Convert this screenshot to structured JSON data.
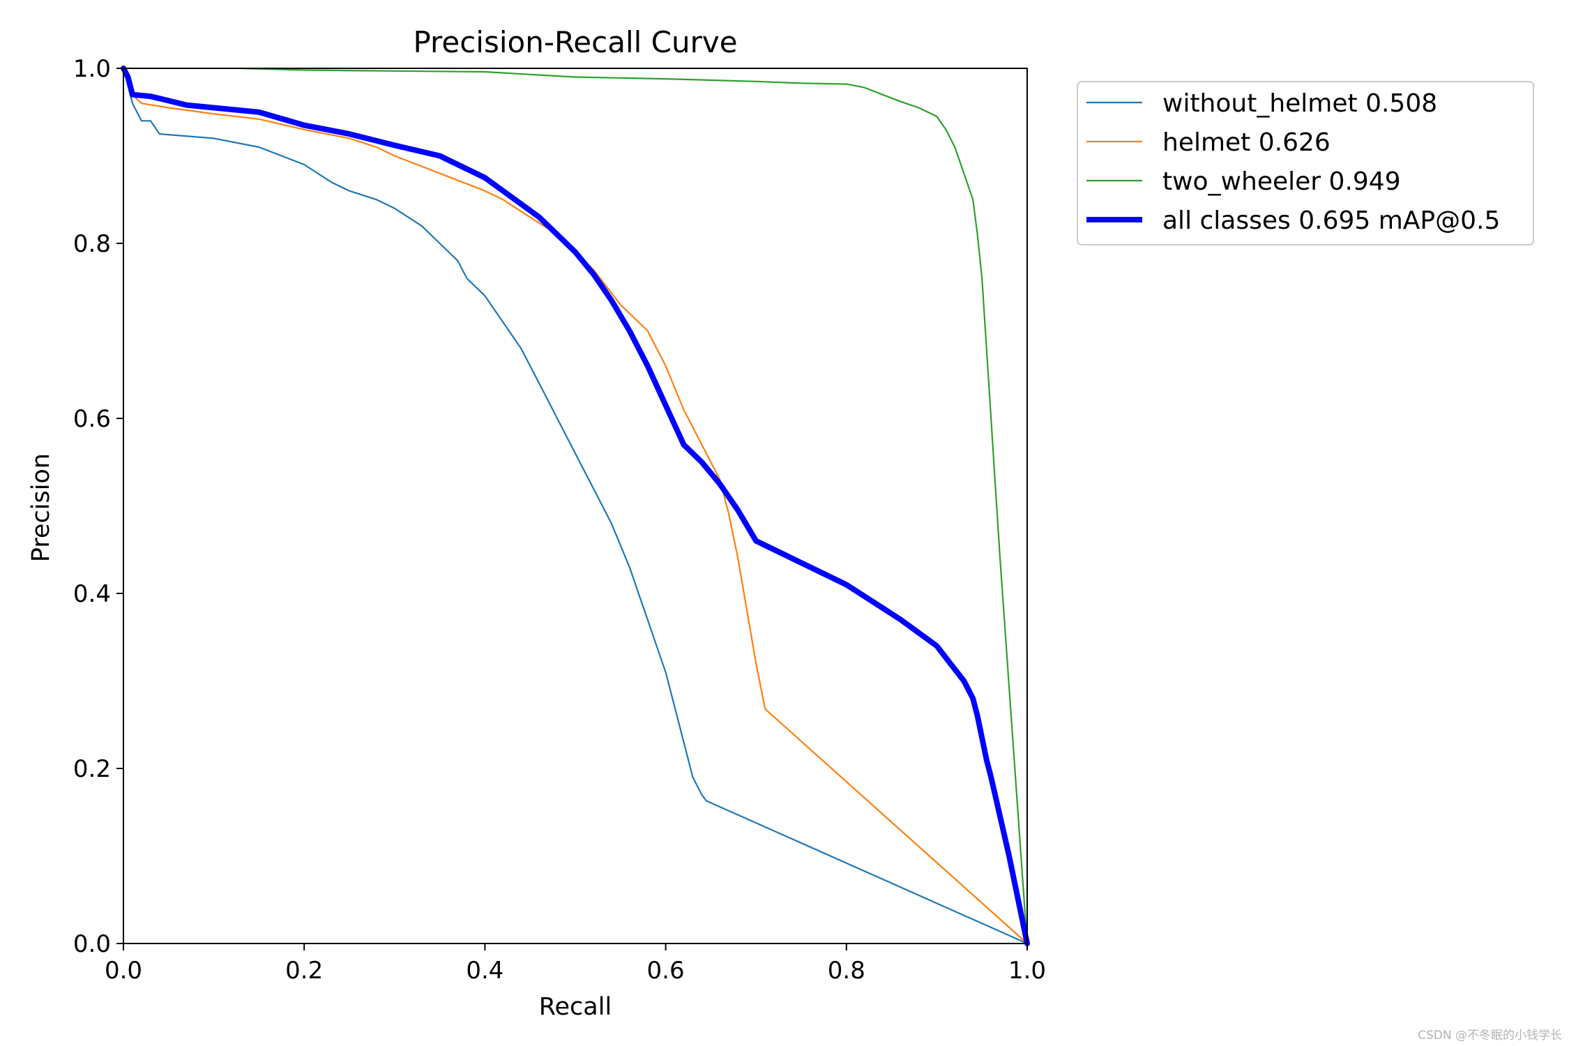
{
  "chart_data": {
    "type": "line",
    "title": "Precision-Recall Curve",
    "xlabel": "Recall",
    "ylabel": "Precision",
    "xlim": [
      0,
      1
    ],
    "ylim": [
      0,
      1
    ],
    "xticks": [
      "0.0",
      "0.2",
      "0.4",
      "0.6",
      "0.8",
      "1.0"
    ],
    "yticks": [
      "0.0",
      "0.2",
      "0.4",
      "0.6",
      "0.8",
      "1.0"
    ],
    "legend_position": "outside-top-right",
    "series": [
      {
        "name": "without_helmet 0.508",
        "color": "#1f77b4",
        "width": "thin",
        "x": [
          0,
          0.01,
          0.02,
          0.03,
          0.04,
          0.1,
          0.15,
          0.2,
          0.23,
          0.25,
          0.28,
          0.3,
          0.33,
          0.35,
          0.37,
          0.38,
          0.4,
          0.42,
          0.44,
          0.46,
          0.48,
          0.5,
          0.52,
          0.54,
          0.56,
          0.57,
          0.58,
          0.59,
          0.6,
          0.61,
          0.62,
          0.63,
          0.64,
          0.645,
          1.0
        ],
        "y": [
          1.0,
          0.96,
          0.94,
          0.94,
          0.925,
          0.92,
          0.91,
          0.89,
          0.87,
          0.86,
          0.85,
          0.84,
          0.82,
          0.8,
          0.78,
          0.76,
          0.74,
          0.71,
          0.68,
          0.64,
          0.6,
          0.56,
          0.52,
          0.48,
          0.43,
          0.4,
          0.37,
          0.34,
          0.31,
          0.27,
          0.23,
          0.19,
          0.17,
          0.163,
          0.0
        ]
      },
      {
        "name": "helmet 0.626",
        "color": "#ff7f0e",
        "width": "thin",
        "x": [
          0,
          0.01,
          0.02,
          0.05,
          0.1,
          0.15,
          0.2,
          0.25,
          0.28,
          0.3,
          0.35,
          0.4,
          0.42,
          0.45,
          0.48,
          0.5,
          0.52,
          0.55,
          0.58,
          0.6,
          0.62,
          0.64,
          0.66,
          0.67,
          0.68,
          0.69,
          0.7,
          0.71,
          1.0
        ],
        "y": [
          1.0,
          0.97,
          0.96,
          0.955,
          0.948,
          0.942,
          0.93,
          0.92,
          0.91,
          0.9,
          0.88,
          0.86,
          0.85,
          0.83,
          0.81,
          0.79,
          0.77,
          0.73,
          0.7,
          0.66,
          0.61,
          0.57,
          0.53,
          0.49,
          0.44,
          0.38,
          0.32,
          0.268,
          0.0
        ]
      },
      {
        "name": "two_wheeler 0.949",
        "color": "#2ca02c",
        "width": "thin",
        "x": [
          0.13,
          0.2,
          0.3,
          0.4,
          0.45,
          0.5,
          0.6,
          0.7,
          0.75,
          0.8,
          0.82,
          0.84,
          0.86,
          0.88,
          0.9,
          0.91,
          0.92,
          0.93,
          0.94,
          0.945,
          0.95,
          0.955,
          0.96,
          0.965,
          0.97,
          1.0
        ],
        "y": [
          1.0,
          0.998,
          0.997,
          0.996,
          0.993,
          0.99,
          0.988,
          0.985,
          0.983,
          0.982,
          0.978,
          0.97,
          0.962,
          0.955,
          0.945,
          0.93,
          0.91,
          0.88,
          0.85,
          0.81,
          0.76,
          0.68,
          0.6,
          0.52,
          0.44,
          0.0
        ]
      },
      {
        "name": "all classes 0.695 mAP@0.5",
        "color": "#0000ff",
        "width": "thick",
        "x": [
          0,
          0.005,
          0.01,
          0.03,
          0.05,
          0.07,
          0.1,
          0.15,
          0.2,
          0.25,
          0.3,
          0.35,
          0.4,
          0.42,
          0.44,
          0.46,
          0.48,
          0.5,
          0.52,
          0.54,
          0.56,
          0.58,
          0.6,
          0.62,
          0.64,
          0.66,
          0.68,
          0.7,
          0.71,
          0.73,
          0.76,
          0.8,
          0.83,
          0.86,
          0.88,
          0.9,
          0.915,
          0.93,
          0.94,
          0.945,
          0.95,
          0.955,
          0.96,
          0.98,
          1.0
        ],
        "y": [
          1.0,
          0.99,
          0.97,
          0.968,
          0.963,
          0.958,
          0.955,
          0.95,
          0.935,
          0.925,
          0.912,
          0.9,
          0.875,
          0.86,
          0.845,
          0.83,
          0.81,
          0.79,
          0.765,
          0.735,
          0.7,
          0.66,
          0.615,
          0.57,
          0.55,
          0.525,
          0.495,
          0.46,
          0.455,
          0.445,
          0.43,
          0.41,
          0.39,
          0.37,
          0.355,
          0.34,
          0.32,
          0.3,
          0.28,
          0.26,
          0.235,
          0.21,
          0.19,
          0.1,
          0.0
        ]
      }
    ]
  },
  "watermark": "CSDN @不冬眠的小钱学长"
}
